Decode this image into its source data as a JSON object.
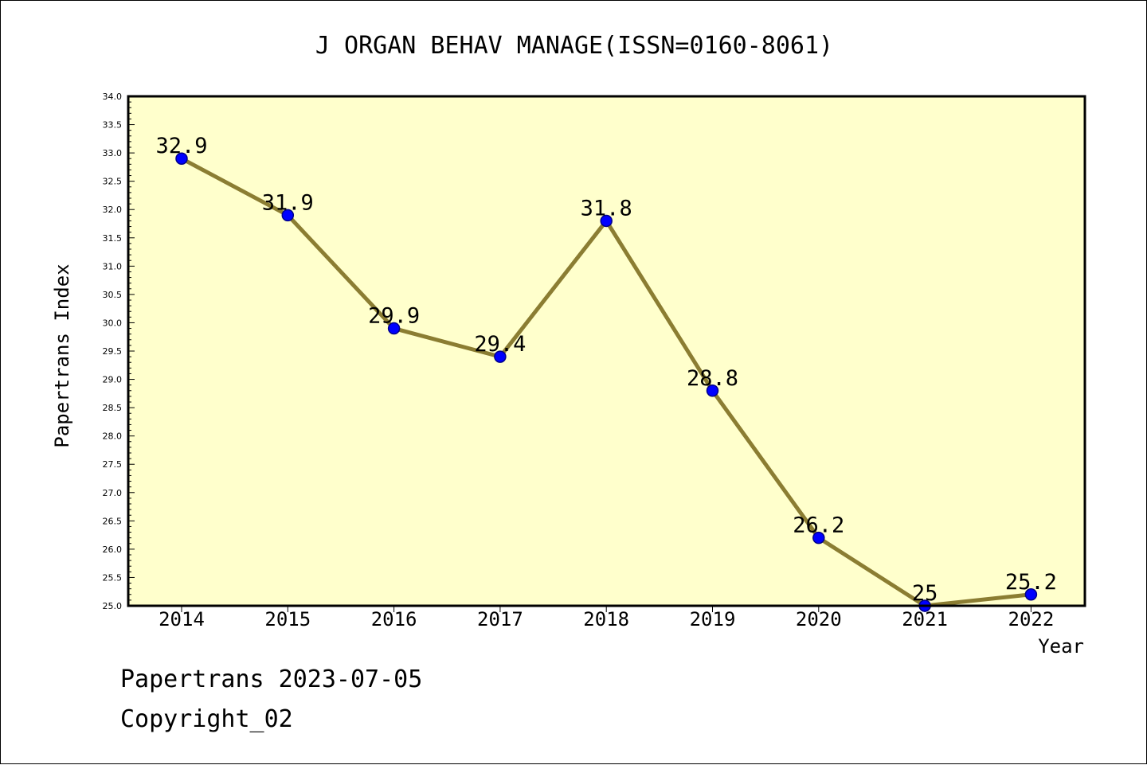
{
  "chart_data": {
    "type": "line",
    "title": "J ORGAN BEHAV MANAGE(ISSN=0160-8061)",
    "xlabel": "Year",
    "ylabel": "Papertrans Index",
    "categories": [
      "2014",
      "2015",
      "2016",
      "2017",
      "2018",
      "2019",
      "2020",
      "2021",
      "2022"
    ],
    "values": [
      32.9,
      31.9,
      29.9,
      29.4,
      31.8,
      28.8,
      26.2,
      25,
      25.2
    ],
    "data_labels": [
      "32.9",
      "31.9",
      "29.9",
      "29.4",
      "31.8",
      "28.8",
      "26.2",
      "25",
      "25.2"
    ],
    "ylim": [
      25.0,
      34.0
    ],
    "yticks": [
      "25.0",
      "25.5",
      "26.0",
      "26.5",
      "27.0",
      "27.5",
      "28.0",
      "28.5",
      "29.0",
      "29.5",
      "30.0",
      "30.5",
      "31.0",
      "31.5",
      "32.0",
      "32.5",
      "33.0",
      "33.5",
      "34.0"
    ],
    "grid": false,
    "legend": "none"
  },
  "colors": {
    "plot_background": "#ffffcc",
    "line": "#8b7d32",
    "marker": "#0000ff",
    "marker_edge": "#00008b"
  },
  "footer": {
    "date_line": "Papertrans 2023-07-05",
    "copyright": "Copyright_02"
  }
}
